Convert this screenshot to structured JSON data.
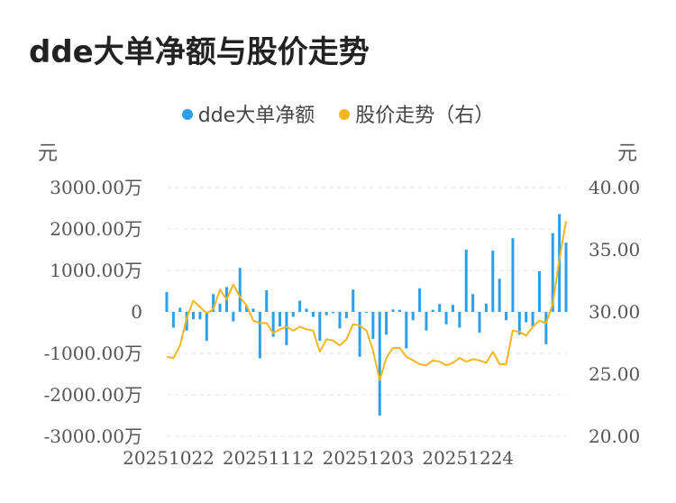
{
  "title": "dde大单净额与股价走势",
  "legend": {
    "bar_label": "dde大单净额",
    "line_label": "股价走势（右）"
  },
  "colors": {
    "bar": "#2f9ee8",
    "line": "#f5b61c",
    "grid": "#e6e6e6"
  },
  "chart_data": {
    "type": "bar",
    "left_unit": "元",
    "right_unit": "元",
    "y_left": {
      "ticks": [
        3000,
        2000,
        1000,
        0,
        -1000,
        -2000,
        -3000
      ],
      "tick_labels": [
        "3000.00万",
        "2000.00万",
        "1000.00万",
        "0",
        "-1000.00万",
        "-2000.00万",
        "-3000.00万"
      ],
      "range": [
        -3000,
        3000
      ]
    },
    "y_right": {
      "ticks": [
        40,
        35,
        30,
        25,
        20
      ],
      "tick_labels": [
        "40.00",
        "35.00",
        "30.00",
        "25.00",
        "20.00"
      ],
      "range": [
        20,
        40
      ]
    },
    "x_tick_labels": [
      {
        "index": 0,
        "label": "20251022"
      },
      {
        "index": 15,
        "label": "20251112"
      },
      {
        "index": 30,
        "label": "20251203"
      },
      {
        "index": 45,
        "label": "20251224"
      }
    ],
    "series": [
      {
        "name": "dde大单净额",
        "type": "bar",
        "values": [
          480,
          -380,
          100,
          -450,
          -180,
          -180,
          -700,
          430,
          200,
          600,
          -230,
          1060,
          150,
          80,
          -1120,
          520,
          -600,
          -350,
          -800,
          -120,
          270,
          80,
          -120,
          -700,
          -80,
          -30,
          -400,
          -150,
          540,
          -1080,
          -20,
          -650,
          -2500,
          -550,
          60,
          50,
          -880,
          -200,
          570,
          -450,
          50,
          190,
          -300,
          170,
          -380,
          1500,
          430,
          -500,
          200,
          1480,
          800,
          -200,
          1780,
          -550,
          -250,
          -350,
          980,
          -780,
          1900,
          2360,
          1670
        ]
      },
      {
        "name": "股价走势（右）",
        "type": "line",
        "values": [
          26.4,
          26.3,
          27.3,
          29.5,
          30.9,
          30.4,
          29.9,
          30.2,
          31.8,
          31.0,
          32.2,
          31.2,
          30.5,
          29.3,
          29.1,
          29.1,
          28.3,
          28.6,
          28.8,
          28.5,
          28.8,
          28.6,
          28.5,
          26.8,
          27.8,
          27.7,
          27.3,
          27.8,
          29.0,
          28.9,
          28.5,
          26.9,
          24.5,
          26.3,
          27.1,
          27.1,
          26.4,
          26.1,
          25.8,
          25.7,
          26.1,
          26.0,
          25.7,
          25.9,
          26.3,
          26.0,
          26.2,
          26.1,
          25.9,
          26.8,
          25.8,
          25.8,
          28.5,
          28.4,
          28.1,
          28.8,
          29.3,
          29.1,
          30.6,
          34.2,
          37.3
        ]
      }
    ],
    "grid": true,
    "legend_position": "top-center"
  }
}
